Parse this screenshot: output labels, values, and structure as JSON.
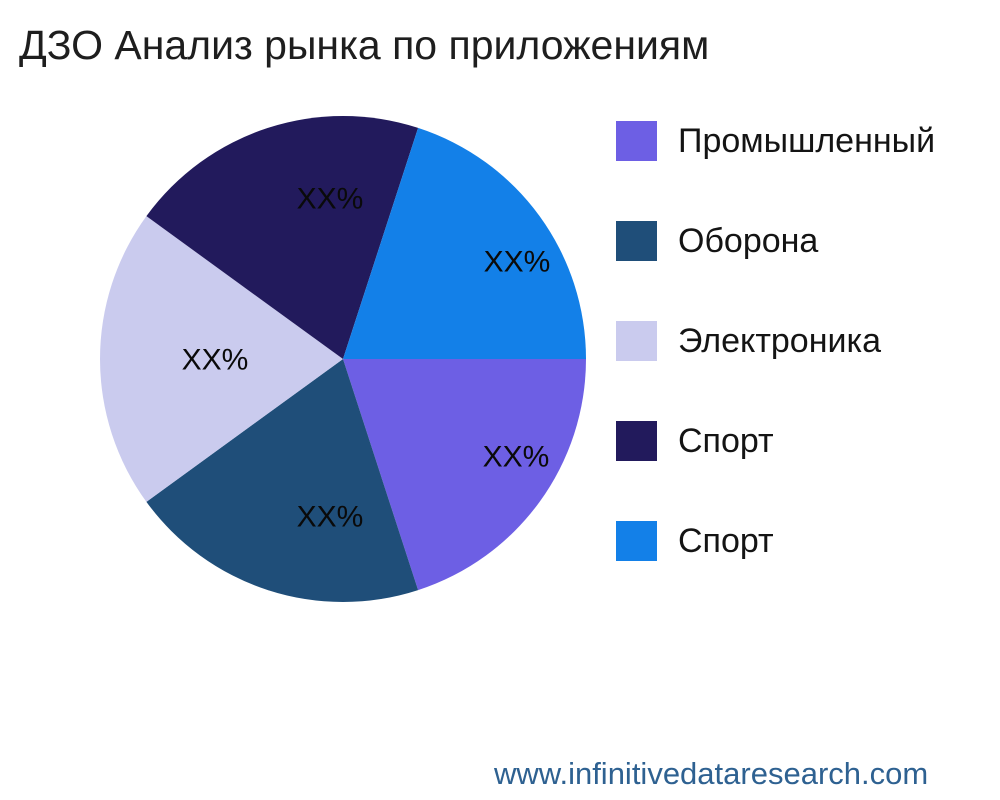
{
  "title": "ДЗО Анализ рынка по приложениям",
  "footer": {
    "url": "www.infinitivedataresearch.com",
    "color": "#2E6191"
  },
  "chart_data": {
    "type": "pie",
    "title": "ДЗО Анализ рынка по приложениям",
    "start_angle_deg": 0,
    "direction": "clockwise",
    "legend_position": "right",
    "values_note": "slice values are shown only as XX% placeholders; all five slices appear equal (~20% / 72° each)",
    "slices": [
      {
        "name": "Промышленный",
        "value": 20,
        "label": "XX%",
        "color": "#6D5FE4"
      },
      {
        "name": "Оборона",
        "value": 20,
        "label": "XX%",
        "color": "#1F4E79"
      },
      {
        "name": "Электроника",
        "value": 20,
        "label": "XX%",
        "color": "#CACBEE"
      },
      {
        "name": "Спорт",
        "value": 20,
        "label": "XX%",
        "color": "#221A5C"
      },
      {
        "name": "Спорт",
        "value": 20,
        "label": "XX%",
        "color": "#1380E8"
      }
    ]
  }
}
